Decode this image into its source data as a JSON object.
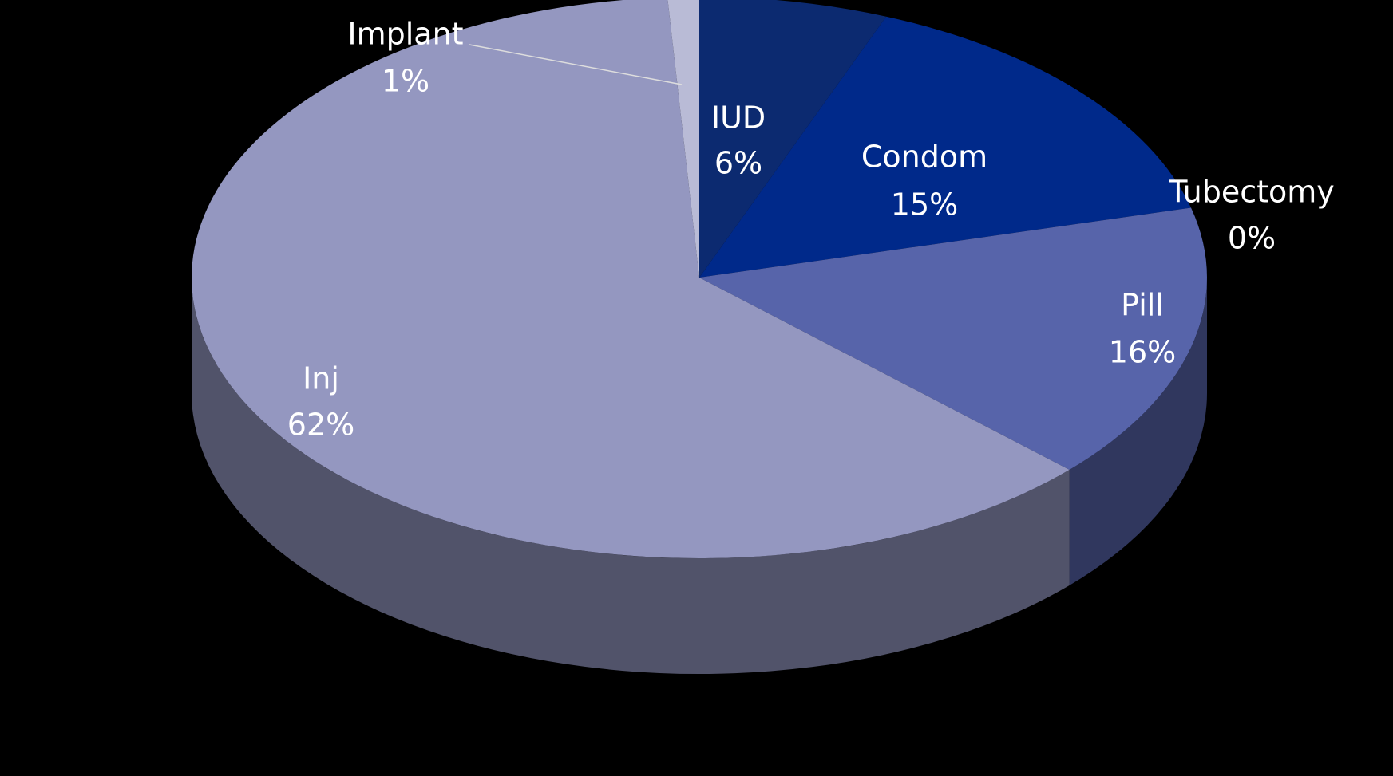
{
  "chart_data": {
    "type": "pie",
    "categories": [
      "IUD",
      "Condom",
      "Tubectomy",
      "Pill",
      "Inj",
      "Implant"
    ],
    "values": [
      6,
      15,
      0,
      16,
      62,
      1
    ],
    "value_labels": [
      "6%",
      "15%",
      "0%",
      "16%",
      "62%",
      "1%"
    ],
    "colors": [
      "#0c2a70",
      "#00298a",
      "#1a3a9a",
      "#5764aa",
      "#9497c0",
      "#b9bbd6"
    ]
  }
}
